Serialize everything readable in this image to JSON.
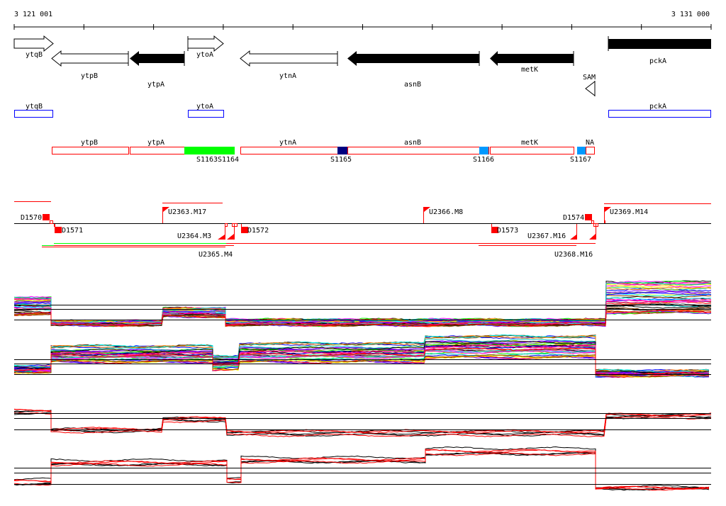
{
  "ruler": {
    "start_label": "3 121 001",
    "end_label": "3 131 000"
  },
  "genes": {
    "ytqB": "ytqB",
    "ytoA": "ytoA",
    "pckA": "pckA",
    "ytpB": "ytpB",
    "ytpA": "ytpA",
    "ytnA": "ytnA",
    "asnB": "asnB",
    "metK": "metK",
    "SAM": "SAM"
  },
  "blue_track": {
    "ytqB": "ytqB",
    "ytoA": "ytoA",
    "pckA": "pckA"
  },
  "operon_track": {
    "labels": {
      "ytpB": "ytpB",
      "ytpA": "ytpA",
      "ytnA": "ytnA",
      "asnB": "asnB",
      "metK": "metK",
      "NA": "NA"
    },
    "sites": {
      "S1163": "S1163",
      "S1164": "S1164",
      "S1165": "S1165",
      "S1166": "S1166",
      "S1167": "S1167"
    },
    "colors": {
      "box": "#ff0000",
      "green": "#00ff00",
      "navy": "#000080",
      "lightblue": "#0099ff"
    }
  },
  "features": {
    "D1570": "D1570",
    "D1571": "D1571",
    "D1572": "D1572",
    "D1573": "D1573",
    "D1574": "D1574",
    "U2363": "U2363.M17",
    "U2364": "U2364.M3",
    "U2365": "U2365.M4",
    "U2366": "U2366.M8",
    "U2367": "U2367.M16",
    "U2368": "U2368.M16",
    "U2369": "U2369.M14"
  },
  "colors": {
    "feature": "#ff0000",
    "blue": "#0000ff"
  }
}
